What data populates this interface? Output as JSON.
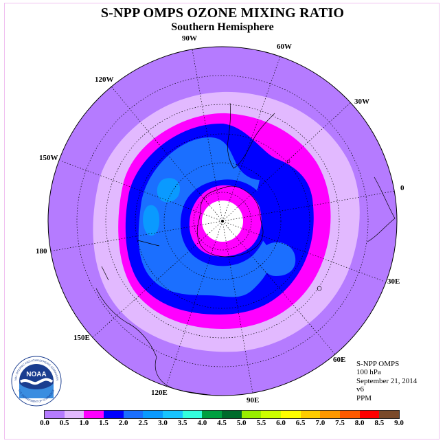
{
  "title": "S-NPP OMPS OZONE MIXING RATIO",
  "subtitle": "Southern Hemisphere",
  "longitude_labels": {
    "w90": "90W",
    "w60": "60W",
    "w30": "30W",
    "w120": "120W",
    "w150": "150W",
    "zero": "0",
    "d180": "180",
    "e30": "30E",
    "e60": "60E",
    "e90": "90E",
    "e120": "120E",
    "e150": "150E"
  },
  "info": {
    "instrument": "S-NPP OMPS",
    "level": "100 hPa",
    "date": "September 21, 2014",
    "version": "v6",
    "units": "PPM"
  },
  "logo": {
    "text": "NOAA",
    "ring_top": "NATIONAL OCEANIC AND ATMOSPHERIC ADMINISTRATION",
    "ring_bottom": "U.S. DEPARTMENT OF COMMERCE"
  },
  "colorbar": {
    "ticks": [
      "0.0",
      "0.5",
      "1.0",
      "1.5",
      "2.0",
      "2.5",
      "3.0",
      "3.5",
      "4.0",
      "4.5",
      "5.0",
      "5.5",
      "6.0",
      "6.5",
      "7.0",
      "7.5",
      "8.0",
      "8.5",
      "9.0"
    ],
    "colors": [
      "#b57bff",
      "#e2b9ff",
      "#ff00ff",
      "#0000ff",
      "#1b6fff",
      "#0a9aff",
      "#17c4ff",
      "#33ffdd",
      "#00a040",
      "#006b2b",
      "#99ee00",
      "#ccff00",
      "#ffff00",
      "#ffcc00",
      "#ff9900",
      "#ff5a00",
      "#ff0000",
      "#7a4a2a"
    ]
  },
  "map_colors": {
    "range_0_0_5": "#b57bff",
    "range_0_5_1_0": "#e2b9ff",
    "range_1_0_1_5": "#ff00ff",
    "range_1_5_2_0": "#0000ff",
    "range_2_0_2_5": "#1b6fff",
    "range_2_5_3_0": "#0a9aff",
    "missing_pole": "#ffffff"
  }
}
